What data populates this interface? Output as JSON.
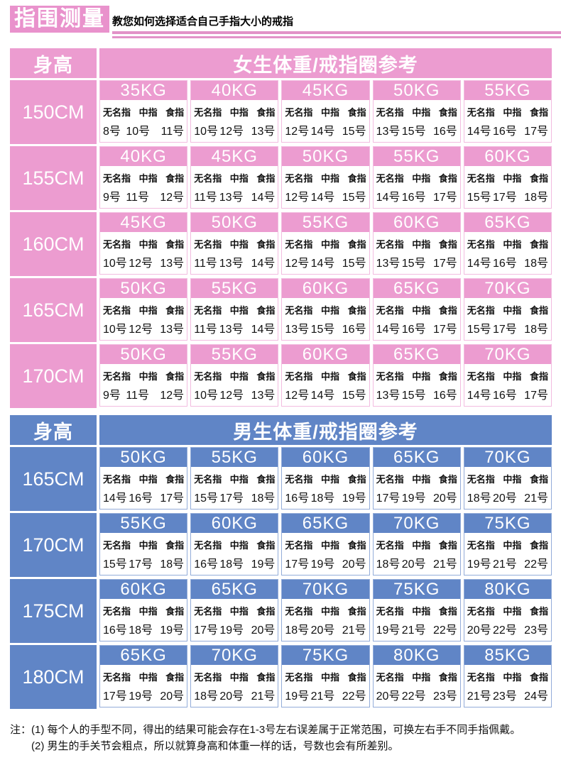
{
  "header": {
    "logo": "指围测量",
    "subtitle": "教您如何选择适合自己手指大小的戒指"
  },
  "colors": {
    "pink_band": "#ec9cd0",
    "pink_border": "#f2bce0",
    "blue_band": "#6085c6",
    "blue_border": "#93acd9"
  },
  "finger_labels": [
    "无名指",
    "中指",
    "食指"
  ],
  "tables": [
    {
      "theme": "pink",
      "height_header": "身高",
      "title": "女生体重/戒指圈参考",
      "rows": [
        {
          "height": "150CM",
          "cells": [
            {
              "weight": "35KG",
              "sizes": [
                "8号",
                "10号",
                "11号"
              ]
            },
            {
              "weight": "40KG",
              "sizes": [
                "10号",
                "12号",
                "13号"
              ]
            },
            {
              "weight": "45KG",
              "sizes": [
                "12号",
                "14号",
                "15号"
              ]
            },
            {
              "weight": "50KG",
              "sizes": [
                "13号",
                "15号",
                "16号"
              ]
            },
            {
              "weight": "55KG",
              "sizes": [
                "14号",
                "16号",
                "17号"
              ]
            }
          ]
        },
        {
          "height": "155CM",
          "cells": [
            {
              "weight": "40KG",
              "sizes": [
                "9号",
                "11号",
                "12号"
              ]
            },
            {
              "weight": "45KG",
              "sizes": [
                "11号",
                "13号",
                "14号"
              ]
            },
            {
              "weight": "50KG",
              "sizes": [
                "12号",
                "14号",
                "15号"
              ]
            },
            {
              "weight": "55KG",
              "sizes": [
                "14号",
                "16号",
                "17号"
              ]
            },
            {
              "weight": "60KG",
              "sizes": [
                "15号",
                "17号",
                "18号"
              ]
            }
          ]
        },
        {
          "height": "160CM",
          "cells": [
            {
              "weight": "45KG",
              "sizes": [
                "10号",
                "12号",
                "13号"
              ]
            },
            {
              "weight": "50KG",
              "sizes": [
                "11号",
                "13号",
                "14号"
              ]
            },
            {
              "weight": "55KG",
              "sizes": [
                "12号",
                "14号",
                "15号"
              ]
            },
            {
              "weight": "60KG",
              "sizes": [
                "13号",
                "15号",
                "17号"
              ]
            },
            {
              "weight": "65KG",
              "sizes": [
                "14号",
                "16号",
                "18号"
              ]
            }
          ]
        },
        {
          "height": "165CM",
          "cells": [
            {
              "weight": "50KG",
              "sizes": [
                "10号",
                "12号",
                "13号"
              ]
            },
            {
              "weight": "55KG",
              "sizes": [
                "11号",
                "13号",
                "14号"
              ]
            },
            {
              "weight": "60KG",
              "sizes": [
                "13号",
                "15号",
                "16号"
              ]
            },
            {
              "weight": "65KG",
              "sizes": [
                "14号",
                "16号",
                "17号"
              ]
            },
            {
              "weight": "70KG",
              "sizes": [
                "15号",
                "17号",
                "18号"
              ]
            }
          ]
        },
        {
          "height": "170CM",
          "cells": [
            {
              "weight": "50KG",
              "sizes": [
                "9号",
                "11号",
                "12号"
              ]
            },
            {
              "weight": "55KG",
              "sizes": [
                "10号",
                "12号",
                "13号"
              ]
            },
            {
              "weight": "60KG",
              "sizes": [
                "12号",
                "14号",
                "15号"
              ]
            },
            {
              "weight": "65KG",
              "sizes": [
                "13号",
                "15号",
                "16号"
              ]
            },
            {
              "weight": "70KG",
              "sizes": [
                "14号",
                "16号",
                "17号"
              ]
            }
          ]
        }
      ]
    },
    {
      "theme": "blue",
      "height_header": "身高",
      "title": "男生体重/戒指圈参考",
      "rows": [
        {
          "height": "165CM",
          "cells": [
            {
              "weight": "50KG",
              "sizes": [
                "14号",
                "16号",
                "17号"
              ]
            },
            {
              "weight": "55KG",
              "sizes": [
                "15号",
                "17号",
                "18号"
              ]
            },
            {
              "weight": "60KG",
              "sizes": [
                "16号",
                "18号",
                "19号"
              ]
            },
            {
              "weight": "65KG",
              "sizes": [
                "17号",
                "19号",
                "20号"
              ]
            },
            {
              "weight": "70KG",
              "sizes": [
                "18号",
                "20号",
                "21号"
              ]
            }
          ]
        },
        {
          "height": "170CM",
          "cells": [
            {
              "weight": "55KG",
              "sizes": [
                "15号",
                "17号",
                "18号"
              ]
            },
            {
              "weight": "60KG",
              "sizes": [
                "16号",
                "18号",
                "19号"
              ]
            },
            {
              "weight": "65KG",
              "sizes": [
                "17号",
                "19号",
                "20号"
              ]
            },
            {
              "weight": "70KG",
              "sizes": [
                "18号",
                "20号",
                "21号"
              ]
            },
            {
              "weight": "75KG",
              "sizes": [
                "19号",
                "21号",
                "22号"
              ]
            }
          ]
        },
        {
          "height": "175CM",
          "cells": [
            {
              "weight": "60KG",
              "sizes": [
                "16号",
                "18号",
                "19号"
              ]
            },
            {
              "weight": "65KG",
              "sizes": [
                "17号",
                "19号",
                "20号"
              ]
            },
            {
              "weight": "70KG",
              "sizes": [
                "18号",
                "20号",
                "21号"
              ]
            },
            {
              "weight": "75KG",
              "sizes": [
                "19号",
                "21号",
                "22号"
              ]
            },
            {
              "weight": "80KG",
              "sizes": [
                "20号",
                "22号",
                "23号"
              ]
            }
          ]
        },
        {
          "height": "180CM",
          "cells": [
            {
              "weight": "65KG",
              "sizes": [
                "17号",
                "19号",
                "20号"
              ]
            },
            {
              "weight": "70KG",
              "sizes": [
                "18号",
                "20号",
                "21号"
              ]
            },
            {
              "weight": "75KG",
              "sizes": [
                "19号",
                "21号",
                "22号"
              ]
            },
            {
              "weight": "80KG",
              "sizes": [
                "20号",
                "22号",
                "23号"
              ]
            },
            {
              "weight": "85KG",
              "sizes": [
                "21号",
                "23号",
                "24号"
              ]
            }
          ]
        }
      ]
    }
  ],
  "notes": {
    "prefix": "注：",
    "items": [
      "(1) 每个人的手型不同，得出的结果可能会存在1-3号左右误差属于正常范围，可换左右手不同手指佩戴。",
      "(2) 男生的手关节会粗点，所以就算身高和体重一样的话，号数也会有所差别。"
    ]
  }
}
